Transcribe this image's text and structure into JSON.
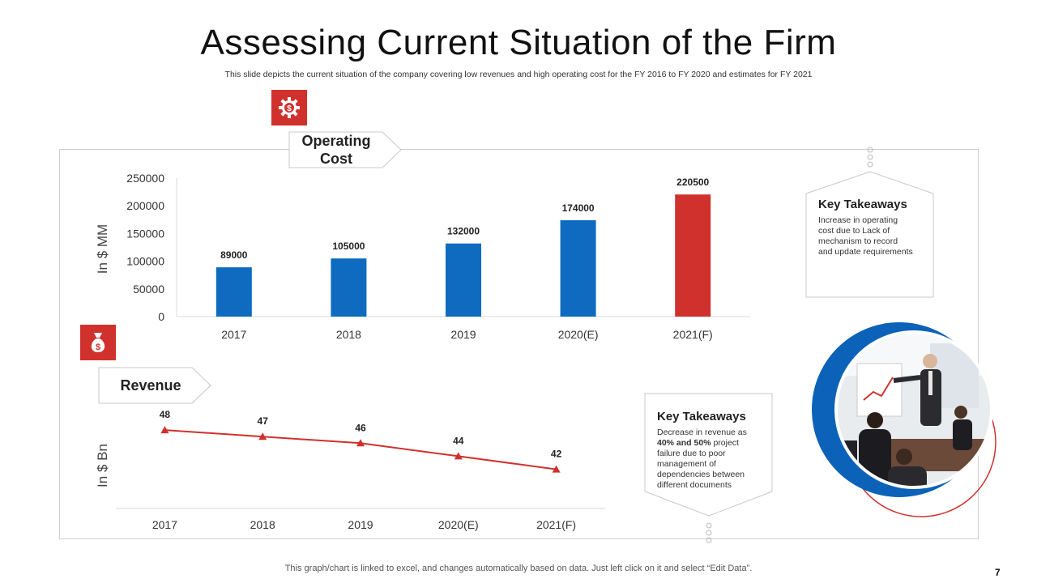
{
  "header": {
    "title": "Assessing Current Situation of the Firm",
    "subtitle": "This slide depicts the current situation of the company  covering low revenues and high operating cost for the FY 2016 to FY 2020 and estimates for FY 2021"
  },
  "colors": {
    "accent": "#d0312d",
    "bar_blue": "#0e6bc0",
    "bar_red": "#d0312d",
    "line_red": "#d0312d",
    "circle_blue": "#0b62b8"
  },
  "icons": {
    "operating_cost": "gear-dollar-icon",
    "revenue": "money-bag-icon",
    "photo": "business-meeting-photo"
  },
  "operating_cost_section": {
    "label": "Operating Cost"
  },
  "revenue_section": {
    "label": "Revenue"
  },
  "takeaways": [
    {
      "title": "Key Takeaways",
      "text": "Increase in operating cost due to Lack of mechanism to record and update requirements"
    },
    {
      "title": "Key Takeaways",
      "text_before": "Decrease in revenue as ",
      "text_bold": "40% and 50%",
      "text_after": " project failure due to poor management of dependencies between different documents"
    }
  ],
  "chart_data": [
    {
      "type": "bar",
      "title": "Operating Cost",
      "categories": [
        "2017",
        "2018",
        "2019",
        "2020(E)",
        "2021(F)"
      ],
      "values": [
        89000,
        105000,
        132000,
        174000,
        220500
      ],
      "data_labels": [
        "89000",
        "105000",
        "132000",
        "174000",
        "220500"
      ],
      "ylabel": "In $ MM",
      "ylim": [
        0,
        250000
      ],
      "yticks": [
        "0",
        "50000",
        "100000",
        "150000",
        "200000",
        "250000"
      ],
      "highlight_index": 4
    },
    {
      "type": "line",
      "title": "Revenue",
      "categories": [
        "2017",
        "2018",
        "2019",
        "2020(E)",
        "2021(F)"
      ],
      "values": [
        48,
        47,
        46,
        44,
        42
      ],
      "data_labels": [
        "48",
        "47",
        "46",
        "44",
        "42"
      ],
      "ylabel": "In $ Bn",
      "ylim": [
        36,
        50
      ]
    }
  ],
  "footer": {
    "note": "This graph/chart is linked to excel, and changes automatically based on data. Just left click on it and select “Edit Data”.",
    "page_number": "7"
  }
}
